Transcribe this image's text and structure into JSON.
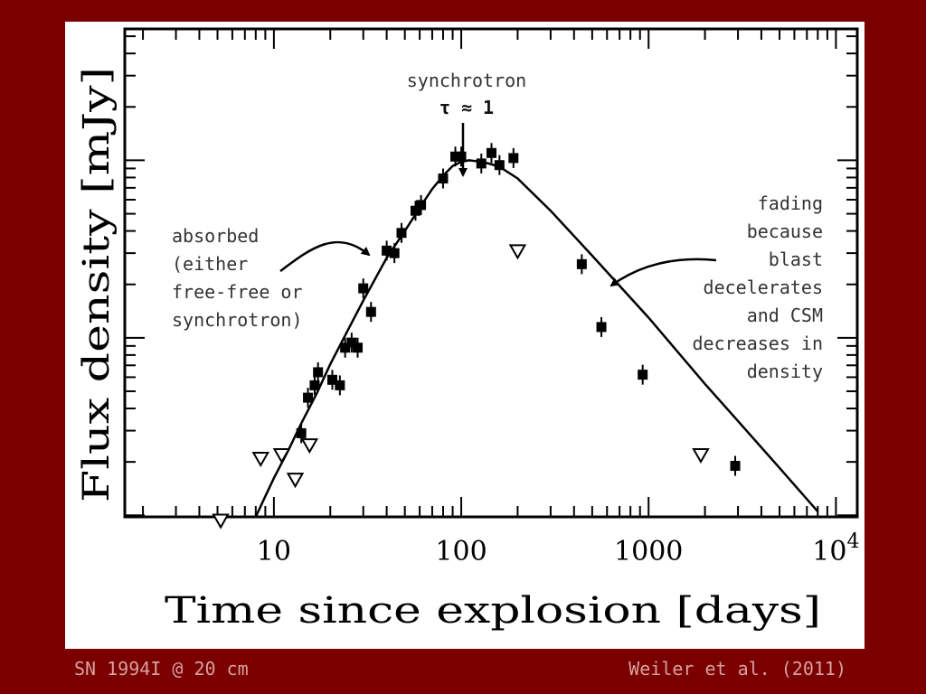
{
  "caption_left": "SN 1994I @ 20 cm",
  "caption_right": "Weiler et al. (2011)",
  "colors": {
    "background": "#7a0000",
    "panel": "#ffffff",
    "ink": "#000000",
    "caption": "#d9a0a0"
  },
  "chart_data": {
    "type": "scatter",
    "xlabel": "Time since explosion [days]",
    "ylabel": "Flux density [mJy]",
    "x_scale": "log",
    "y_scale": "log",
    "xlim": [
      1.6,
      13000
    ],
    "ylim": [
      0.0098,
      5.5
    ],
    "x_ticks": [
      {
        "value": 10,
        "label": "10"
      },
      {
        "value": 100,
        "label": "100"
      },
      {
        "value": 1000,
        "label": "1000"
      },
      {
        "value": 10000,
        "label": "10",
        "sup": "4"
      }
    ],
    "y_decades": [
      0.01,
      0.1,
      1
    ],
    "series": [
      {
        "marker": "filled-square",
        "points": [
          {
            "x": 14,
            "y": 0.029
          },
          {
            "x": 15.2,
            "y": 0.046
          },
          {
            "x": 16.5,
            "y": 0.054
          },
          {
            "x": 17.2,
            "y": 0.064
          },
          {
            "x": 20.5,
            "y": 0.058
          },
          {
            "x": 22.5,
            "y": 0.054
          },
          {
            "x": 24,
            "y": 0.088
          },
          {
            "x": 26,
            "y": 0.094
          },
          {
            "x": 28,
            "y": 0.088
          },
          {
            "x": 30,
            "y": 0.19
          },
          {
            "x": 33,
            "y": 0.14
          },
          {
            "x": 40,
            "y": 0.31
          },
          {
            "x": 44,
            "y": 0.3
          },
          {
            "x": 48,
            "y": 0.39
          },
          {
            "x": 57,
            "y": 0.52
          },
          {
            "x": 61,
            "y": 0.56
          },
          {
            "x": 80,
            "y": 0.79
          },
          {
            "x": 93,
            "y": 1.05
          },
          {
            "x": 100,
            "y": 1.05
          },
          {
            "x": 128,
            "y": 0.96
          },
          {
            "x": 145,
            "y": 1.1
          },
          {
            "x": 160,
            "y": 0.94
          },
          {
            "x": 190,
            "y": 1.03
          },
          {
            "x": 440,
            "y": 0.26
          },
          {
            "x": 560,
            "y": 0.115
          },
          {
            "x": 930,
            "y": 0.062
          },
          {
            "x": 2900,
            "y": 0.019
          }
        ]
      },
      {
        "marker": "open-triangle-down",
        "points": [
          {
            "x": 5.2,
            "y": 0.0094
          },
          {
            "x": 8.5,
            "y": 0.021
          },
          {
            "x": 11,
            "y": 0.022
          },
          {
            "x": 13,
            "y": 0.016
          },
          {
            "x": 15.5,
            "y": 0.025
          },
          {
            "x": 200,
            "y": 0.31
          },
          {
            "x": 1900,
            "y": 0.022
          }
        ]
      }
    ],
    "model_curve": [
      [
        8.0,
        0.0098
      ],
      [
        9.0,
        0.0128
      ],
      [
        10.0,
        0.0162
      ],
      [
        12.0,
        0.0235
      ],
      [
        14.0,
        0.033
      ],
      [
        17.0,
        0.049
      ],
      [
        20.0,
        0.071
      ],
      [
        25.0,
        0.112
      ],
      [
        30.0,
        0.162
      ],
      [
        40.0,
        0.282
      ],
      [
        50.0,
        0.4
      ],
      [
        60.0,
        0.54
      ],
      [
        70.0,
        0.69
      ],
      [
        80.0,
        0.82
      ],
      [
        90.0,
        0.93
      ],
      [
        100.0,
        0.98
      ],
      [
        110.0,
        1.0
      ],
      [
        120.0,
        0.99
      ],
      [
        140.0,
        0.96
      ],
      [
        160.0,
        0.92
      ],
      [
        200.0,
        0.79
      ],
      [
        300.0,
        0.52
      ],
      [
        500.0,
        0.29
      ],
      [
        1000.0,
        0.13
      ],
      [
        2000.0,
        0.055
      ],
      [
        3000.0,
        0.034
      ],
      [
        5000.0,
        0.0185
      ],
      [
        8000.0,
        0.0105
      ]
    ],
    "annotations": [
      {
        "id": "peak",
        "lines": [
          "synchrotron",
          "τ ≈ 1"
        ]
      },
      {
        "id": "absorbed",
        "lines": [
          "absorbed",
          "(either",
          "free-free or",
          "synchrotron)"
        ]
      },
      {
        "id": "fading",
        "lines": [
          "fading",
          "because",
          "blast",
          "decelerates",
          "and CSM",
          "decreases in",
          "density"
        ]
      }
    ]
  }
}
